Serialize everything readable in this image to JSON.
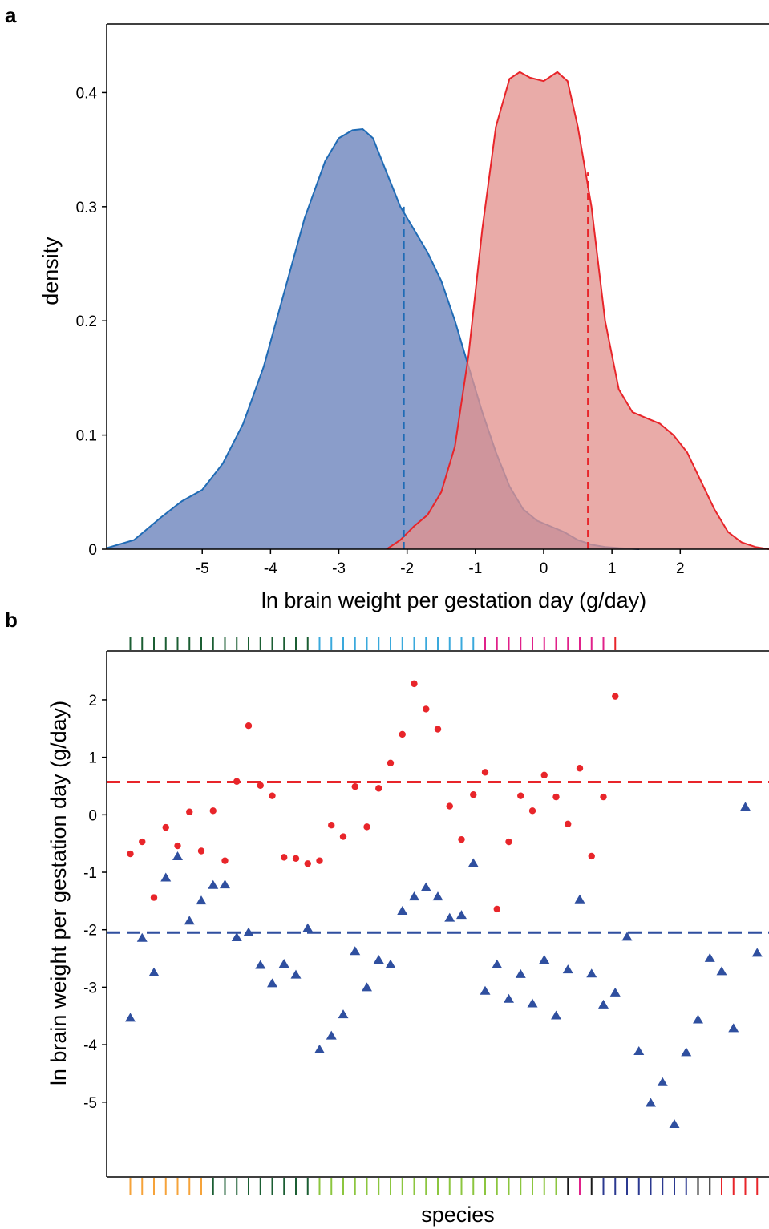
{
  "colors": {
    "human_blue": "#2f4f9f",
    "red": "#e8252a",
    "blue_fill": "#8a9dca",
    "red_fill": "#e3938f",
    "blue_line": "#1f6bb5",
    "dark_green": "#1b5e33",
    "light_blue": "#3aa9dc",
    "magenta": "#e0218a",
    "orange": "#f6a33a",
    "light_green": "#8cc63f",
    "black": "#1a1a1a",
    "navy": "#2b3990",
    "crimson": "#e8252a"
  },
  "chart_data": [
    {
      "panel": "a",
      "type": "area",
      "xlabel": "ln brain weight per gestation day (g/day)",
      "ylabel": "density",
      "xlim": [
        -6.4,
        3.3
      ],
      "ylim": [
        0,
        0.46
      ],
      "xticks": [
        "-5",
        "-4",
        "-3",
        "-2",
        "-1",
        "0",
        "1",
        "2"
      ],
      "yticks": [
        "0",
        "0.1",
        "0.2",
        "0.3",
        "0.4"
      ],
      "series": [
        {
          "color": "blue",
          "x": [
            -6.4,
            -6.0,
            -5.6,
            -5.3,
            -5.0,
            -4.7,
            -4.4,
            -4.1,
            -3.8,
            -3.5,
            -3.2,
            -3.0,
            -2.8,
            -2.65,
            -2.5,
            -2.3,
            -2.1,
            -1.9,
            -1.7,
            -1.5,
            -1.3,
            -1.1,
            -0.9,
            -0.7,
            -0.5,
            -0.3,
            -0.1,
            0.1,
            0.3,
            0.5,
            0.7,
            0.9,
            1.1,
            1.4
          ],
          "y": [
            0.001,
            0.008,
            0.028,
            0.042,
            0.052,
            0.075,
            0.11,
            0.16,
            0.225,
            0.29,
            0.34,
            0.36,
            0.367,
            0.368,
            0.36,
            0.33,
            0.3,
            0.28,
            0.26,
            0.235,
            0.2,
            0.16,
            0.12,
            0.085,
            0.055,
            0.035,
            0.025,
            0.02,
            0.015,
            0.008,
            0.004,
            0.002,
            0.001,
            0.0
          ],
          "mean_line": -2.05,
          "mean_line_height": 0.3
        },
        {
          "color": "red",
          "x": [
            -2.3,
            -2.1,
            -1.9,
            -1.7,
            -1.5,
            -1.3,
            -1.1,
            -0.9,
            -0.7,
            -0.5,
            -0.35,
            -0.2,
            0.0,
            0.2,
            0.35,
            0.5,
            0.7,
            0.9,
            1.1,
            1.3,
            1.5,
            1.7,
            1.9,
            2.1,
            2.3,
            2.5,
            2.7,
            2.9,
            3.1,
            3.3
          ],
          "y": [
            0.0,
            0.008,
            0.02,
            0.03,
            0.05,
            0.09,
            0.17,
            0.28,
            0.37,
            0.412,
            0.418,
            0.413,
            0.41,
            0.418,
            0.41,
            0.37,
            0.3,
            0.2,
            0.14,
            0.12,
            0.115,
            0.11,
            0.1,
            0.085,
            0.06,
            0.035,
            0.015,
            0.006,
            0.002,
            0.0
          ],
          "mean_line": 0.65,
          "mean_line_height": 0.33
        }
      ]
    },
    {
      "panel": "b",
      "type": "scatter",
      "xlabel": "species",
      "ylabel": "ln brain weight per gestation day (g/day)",
      "xlim": [
        0,
        56
      ],
      "ylim": [
        -6.3,
        2.85
      ],
      "yticks": [
        "2",
        "1",
        "0",
        "-1",
        "-2",
        "-3",
        "-4",
        "-5"
      ],
      "hlines": [
        {
          "color": "red",
          "y": 0.57
        },
        {
          "color": "blue",
          "y": -2.05
        }
      ],
      "series": [
        {
          "marker": "circle",
          "color": "red",
          "x": [
            2,
            3,
            4,
            5,
            6,
            7,
            8,
            9,
            10,
            11,
            12,
            13,
            14,
            15,
            16,
            17,
            18,
            19,
            20,
            21,
            22,
            23,
            24,
            25,
            26,
            27,
            28,
            29,
            30,
            31,
            32,
            33,
            34,
            35,
            36,
            37,
            38,
            39,
            40,
            41,
            42,
            43
          ],
          "y": [
            -0.68,
            -0.47,
            -1.44,
            -0.22,
            -0.54,
            0.05,
            -0.63,
            0.07,
            -0.8,
            0.58,
            1.55,
            0.51,
            0.33,
            -0.74,
            -0.76,
            -0.85,
            -0.8,
            -0.18,
            -0.38,
            0.49,
            -0.21,
            0.46,
            0.9,
            1.4,
            2.28,
            1.84,
            1.49,
            0.15,
            -0.43,
            0.35,
            0.74,
            -1.64,
            -0.47,
            0.33,
            0.07,
            0.69,
            0.31,
            -0.16,
            0.81,
            -0.72,
            0.31,
            2.06
          ]
        },
        {
          "marker": "triangle",
          "color": "blue",
          "x": [
            2,
            3,
            4,
            5,
            6,
            7,
            8,
            9,
            10,
            11,
            12,
            13,
            14,
            15,
            16,
            17,
            18,
            19,
            20,
            21,
            22,
            23,
            24,
            25,
            26,
            27,
            28,
            29,
            30,
            31,
            32,
            33,
            34,
            35,
            36,
            37,
            38,
            39,
            40,
            41,
            42,
            43,
            44,
            45,
            46,
            47,
            48,
            49,
            50,
            51,
            52,
            53,
            54,
            55
          ],
          "y": [
            -3.53,
            -2.14,
            -2.74,
            -1.09,
            -0.72,
            -1.84,
            -1.49,
            -1.22,
            -1.21,
            -2.13,
            -2.04,
            -2.61,
            -2.93,
            -2.59,
            -2.78,
            -1.97,
            -4.08,
            -3.84,
            -3.47,
            -2.37,
            -3.0,
            -2.52,
            -2.6,
            -1.67,
            -1.42,
            -1.26,
            -1.42,
            -1.79,
            -1.74,
            -0.84,
            -3.06,
            -2.6,
            -3.2,
            -2.77,
            -3.28,
            -2.52,
            -3.49,
            -2.69,
            -1.47,
            -2.76,
            -3.3,
            -3.09,
            -2.12,
            -4.11,
            -5.01,
            -4.65,
            -5.38,
            -4.13,
            -3.56,
            -2.49,
            -2.72,
            -3.71,
            0.14,
            -2.4
          ]
        }
      ],
      "top_rug": [
        {
          "color": "dark_green",
          "from": 2,
          "to": 17
        },
        {
          "color": "light_blue",
          "from": 18,
          "to": 31
        },
        {
          "color": "magenta",
          "from": 32,
          "to": 42
        },
        {
          "color": "crimson",
          "from": 43,
          "to": 43
        }
      ],
      "bottom_rug": [
        {
          "color": "orange",
          "from": 2,
          "to": 8
        },
        {
          "color": "dark_green",
          "from": 9,
          "to": 17
        },
        {
          "color": "light_green",
          "from": 18,
          "to": 38
        },
        {
          "color": "black",
          "from": 39,
          "to": 39
        },
        {
          "color": "magenta",
          "from": 40,
          "to": 40
        },
        {
          "color": "black",
          "from": 41,
          "to": 41
        },
        {
          "color": "navy",
          "from": 42,
          "to": 49
        },
        {
          "color": "black",
          "from": 50,
          "to": 51
        },
        {
          "color": "crimson",
          "from": 52,
          "to": 55
        }
      ]
    }
  ]
}
